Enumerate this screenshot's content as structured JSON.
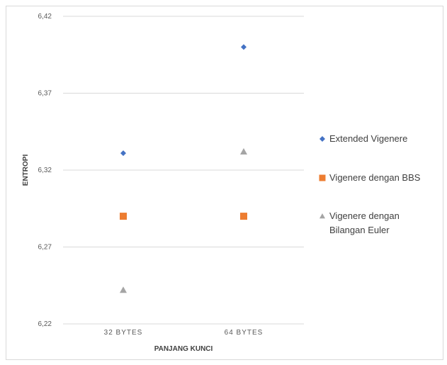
{
  "chart_data": {
    "type": "scatter",
    "categories": [
      "32 BYTES",
      "64 BYTES"
    ],
    "xlabel": "PANJANG KUNCI",
    "ylabel": "ENTROPI",
    "ylim": [
      6.22,
      6.42
    ],
    "y_ticks": [
      "6,22",
      "6,27",
      "6,32",
      "6,37",
      "6,42"
    ],
    "grid": true,
    "legend_position": "right",
    "series": [
      {
        "name": "Extended Vigenere",
        "marker": "diamond",
        "color": "#4472c4",
        "values": [
          6.331,
          6.4
        ]
      },
      {
        "name": "Vigenere dengan BBS",
        "marker": "square",
        "color": "#ed7d31",
        "values": [
          6.29,
          6.29
        ]
      },
      {
        "name": "Vigenere dengan Bilangan Euler",
        "marker": "triangle",
        "color": "#a5a5a5",
        "values": [
          6.242,
          6.332
        ]
      }
    ],
    "legend_lines": [
      [
        "Extended Vigenere"
      ],
      [
        "Vigenere dengan BBS"
      ],
      [
        "Vigenere dengan",
        "Bilangan Euler"
      ]
    ]
  }
}
